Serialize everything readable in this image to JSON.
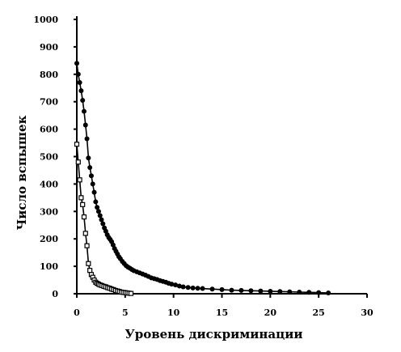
{
  "chart_data": {
    "type": "line",
    "title": "",
    "xlabel": "Уровень дискриминации",
    "ylabel": "Число вспышек",
    "xlim": [
      0,
      30
    ],
    "ylim": [
      0,
      1000
    ],
    "x_ticks": [
      "0",
      "5",
      "10",
      "15",
      "20",
      "25",
      "30"
    ],
    "y_ticks": [
      "0",
      "100",
      "200",
      "300",
      "400",
      "500",
      "600",
      "700",
      "800",
      "900",
      "1000"
    ],
    "grid": false,
    "legend": "none",
    "series": [
      {
        "marker": "filled-circle",
        "color": "#000000",
        "x": [
          0,
          0.15,
          0.3,
          0.45,
          0.6,
          0.75,
          0.9,
          1.05,
          1.2,
          1.35,
          1.5,
          1.65,
          1.8,
          1.95,
          2.1,
          2.25,
          2.4,
          2.55,
          2.7,
          2.85,
          3.0,
          3.15,
          3.3,
          3.45,
          3.6,
          3.75,
          3.9,
          4.05,
          4.2,
          4.35,
          4.5,
          4.7,
          4.9,
          5.1,
          5.3,
          5.5,
          5.7,
          5.9,
          6.2,
          6.5,
          6.8,
          7.1,
          7.4,
          7.7,
          8.0,
          8.3,
          8.6,
          8.9,
          9.2,
          9.5,
          9.8,
          10.2,
          10.6,
          11.0,
          11.5,
          12.0,
          12.5,
          13.0,
          14.0,
          15.0,
          16.0,
          17.0,
          18.0,
          19.0,
          20.0,
          21.0,
          22.0,
          23.0,
          24.0,
          25.0,
          26.0
        ],
        "y": [
          840,
          800,
          770,
          740,
          705,
          665,
          615,
          565,
          495,
          460,
          430,
          400,
          370,
          335,
          315,
          300,
          285,
          270,
          255,
          240,
          228,
          215,
          205,
          198,
          190,
          178,
          165,
          155,
          145,
          135,
          128,
          118,
          110,
          102,
          97,
          93,
          88,
          84,
          80,
          76,
          72,
          68,
          63,
          58,
          55,
          52,
          48,
          45,
          42,
          38,
          35,
          32,
          28,
          25,
          23,
          21,
          20,
          19,
          17,
          15,
          13,
          12,
          11,
          10,
          9,
          8,
          7,
          6,
          5,
          4,
          3
        ]
      },
      {
        "marker": "open-square",
        "color": "#000000",
        "x": [
          0,
          0.15,
          0.3,
          0.45,
          0.6,
          0.75,
          0.9,
          1.05,
          1.2,
          1.35,
          1.5,
          1.65,
          1.8,
          1.95,
          2.1,
          2.25,
          2.4,
          2.6,
          2.8,
          3.0,
          3.2,
          3.4,
          3.6,
          3.8,
          4.0,
          4.2,
          4.4,
          4.6,
          4.8,
          5.0,
          5.2,
          5.4,
          5.6
        ],
        "y": [
          545,
          480,
          415,
          350,
          325,
          280,
          220,
          175,
          110,
          85,
          70,
          60,
          50,
          42,
          38,
          35,
          32,
          30,
          27,
          25,
          22,
          20,
          17,
          15,
          12,
          10,
          8,
          6,
          5,
          4,
          3,
          2,
          1
        ]
      }
    ]
  }
}
